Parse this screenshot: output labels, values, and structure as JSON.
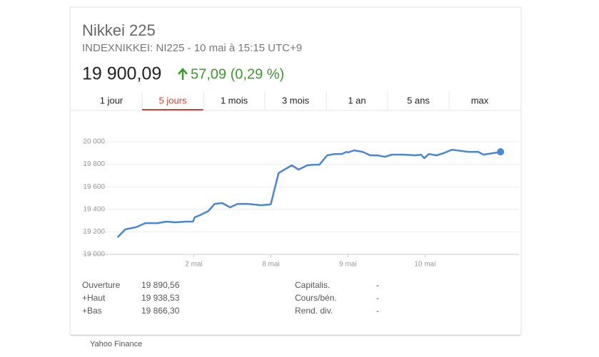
{
  "header": {
    "title": "Nikkei 225",
    "subtitle": "INDEXNIKKEI: NI225 - 10 mai à 15:15 UTC+9",
    "price": "19 900,09",
    "change": "57,09 (0,29 %)"
  },
  "tabs": [
    "1 jour",
    "5 jours",
    "1 mois",
    "3 mois",
    "1 an",
    "5 ans",
    "max"
  ],
  "selected_tab": 1,
  "chart_data": {
    "type": "line",
    "color": "#4a86d8",
    "x": [
      0.01,
      0.11,
      0.25,
      0.37,
      0.53,
      0.64,
      0.76,
      0.9,
      0.99,
      1.01,
      1.08,
      1.19,
      1.27,
      1.37,
      1.47,
      1.57,
      1.69,
      1.78,
      1.87,
      1.99,
      2.0,
      2.1,
      2.19,
      2.27,
      2.36,
      2.47,
      2.56,
      2.63,
      2.73,
      2.83,
      2.92,
      2.98,
      3.0,
      3.08,
      3.19,
      3.29,
      3.38,
      3.48,
      3.57,
      3.72,
      3.88,
      3.95,
      3.99,
      4.05,
      4.15,
      4.24,
      4.35,
      4.56,
      4.69,
      4.76,
      4.88,
      4.98
    ],
    "values": [
      19152,
      19222,
      19241,
      19278,
      19278,
      19291,
      19285,
      19291,
      19291,
      19329,
      19348,
      19386,
      19449,
      19456,
      19418,
      19449,
      19449,
      19443,
      19437,
      19443,
      19449,
      19722,
      19759,
      19791,
      19753,
      19791,
      19797,
      19797,
      19880,
      19892,
      19892,
      19911,
      19905,
      19924,
      19911,
      19880,
      19880,
      19867,
      19886,
      19886,
      19880,
      19886,
      19854,
      19892,
      19880,
      19899,
      19930,
      19911,
      19911,
      19886,
      19899,
      19911
    ],
    "xlim": [
      -0.45,
      5.22
    ],
    "ylim": [
      19000,
      20000
    ],
    "xticks": [
      {
        "value": 1,
        "label": "2 mai"
      },
      {
        "value": 2,
        "label": "8 mai"
      },
      {
        "value": 3,
        "label": "9 mai"
      },
      {
        "value": 4,
        "label": "10 mai"
      }
    ],
    "yticks": [
      {
        "value": 19000,
        "label": "19 000"
      },
      {
        "value": 19200,
        "label": "19 200"
      },
      {
        "value": 19400,
        "label": "19 400"
      },
      {
        "value": 19600,
        "label": "19 600"
      },
      {
        "value": 19800,
        "label": "19 800"
      },
      {
        "value": 20000,
        "label": "20 000"
      }
    ],
    "grid": true
  },
  "stats_left": [
    {
      "label": "Ouverture",
      "value": "19 890,56"
    },
    {
      "label": "+Haut",
      "value": "19 938,53"
    },
    {
      "label": "+Bas",
      "value": "19 866,30"
    }
  ],
  "stats_right": [
    {
      "label": "Capitalis.",
      "value": "-"
    },
    {
      "label": "Cours/bén.",
      "value": "-"
    },
    {
      "label": "Rend. div.",
      "value": "-"
    }
  ],
  "source": "Yahoo Finance"
}
